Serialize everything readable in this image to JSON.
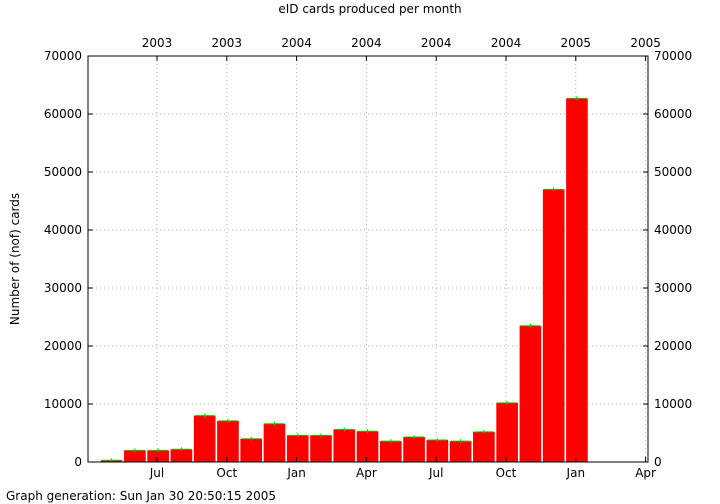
{
  "chart_data": {
    "type": "bar",
    "title": "eID cards produced per month",
    "ylabel": "Number of (nof) cards",
    "xlabel": "",
    "footer": "Graph generation: Sun Jan 30 20:50:15 2005",
    "ylim": [
      0,
      70000
    ],
    "yticks": [
      0,
      10000,
      20000,
      30000,
      40000,
      50000,
      60000,
      70000
    ],
    "grid": true,
    "legend": "none",
    "bar_color": "#ff0000",
    "tip_color": "#00cc00",
    "bottom_ticks": [
      "Jul",
      "Oct",
      "Jan",
      "Apr",
      "Jul",
      "Oct",
      "Jan",
      "Apr"
    ],
    "top_ticks": [
      "2003",
      "2003",
      "2004",
      "2004",
      "2004",
      "2004",
      "2005",
      "2005"
    ],
    "values": [
      300,
      2000,
      2000,
      2200,
      8000,
      7100,
      4000,
      6600,
      4600,
      4600,
      5600,
      5300,
      3600,
      4300,
      3800,
      3600,
      5200,
      10200,
      23500,
      47000,
      62700
    ]
  }
}
